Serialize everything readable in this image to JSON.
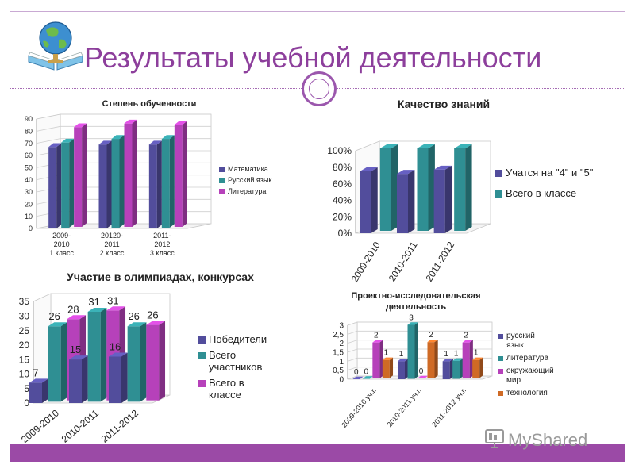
{
  "slide": {
    "title": "Результаты учебной деятельности",
    "watermark": "MyShared"
  },
  "colors": {
    "accent": "#9b4aa6",
    "title": "#8d3f9c",
    "navy": "#524d9c",
    "teal": "#2f8f93",
    "magenta": "#b641ba",
    "orange": "#cf6a25"
  },
  "icons": [
    "globe-book-logo-icon",
    "monitor-logo-icon"
  ],
  "chart_data": [
    {
      "id": "c1",
      "type": "bar",
      "title": "Степень обученности",
      "categories": [
        [
          "2009-",
          "2010",
          "1 класс"
        ],
        [
          "20120-",
          "2011",
          "2 класс"
        ],
        [
          "2011-",
          "2012",
          "3 класс"
        ]
      ],
      "series": [
        {
          "name": "Математика",
          "color": "#524d9c",
          "values": [
            67,
            69,
            69
          ]
        },
        {
          "name": "Русский язык",
          "color": "#2f8f93",
          "values": [
            70,
            73,
            73
          ]
        },
        {
          "name": "Литература",
          "color": "#b641ba",
          "values": [
            82,
            85,
            84
          ]
        }
      ],
      "ylim": [
        0,
        90
      ],
      "yticks": [
        "0",
        "10",
        "20",
        "30",
        "40",
        "50",
        "60",
        "70",
        "80",
        "90"
      ],
      "legend": "right",
      "grid": true
    },
    {
      "id": "c2",
      "type": "bar",
      "title": "Качество знаний",
      "categories": [
        "2009-2010",
        "2010-2011",
        "2011-2012"
      ],
      "series": [
        {
          "name": "Учатся на \"4\" и \"5\"",
          "color": "#524d9c",
          "values": [
            75,
            72,
            77
          ]
        },
        {
          "name": "Всего в классе",
          "color": "#2f8f93",
          "values": [
            100,
            100,
            100
          ]
        }
      ],
      "ylim": [
        0,
        100
      ],
      "yticks": [
        "0%",
        "20%",
        "40%",
        "60%",
        "80%",
        "100%"
      ],
      "legend": "right",
      "grid": false
    },
    {
      "id": "c3",
      "type": "bar",
      "title": "Участие в олимпиадах, конкурсах",
      "categories": [
        "2009-2010",
        "2010-2011",
        "2011-2012"
      ],
      "series": [
        {
          "name": "Победители",
          "color": "#524d9c",
          "values": [
            7,
            15,
            16
          ],
          "labels": [
            "7",
            "15",
            "16"
          ]
        },
        {
          "name": "Всего участников",
          "color": "#2f8f93",
          "values": [
            26,
            31,
            26
          ],
          "labels": [
            "26",
            "31",
            "26"
          ]
        },
        {
          "name": "Всего в классе",
          "color": "#b641ba",
          "values": [
            28,
            31,
            26
          ],
          "labels": [
            "28",
            "31",
            "26"
          ]
        }
      ],
      "ylim": [
        0,
        35
      ],
      "yticks": [
        "0",
        "5",
        "10",
        "15",
        "20",
        "25",
        "30",
        "35"
      ],
      "legend": "right",
      "grid": false
    },
    {
      "id": "c4",
      "type": "bar",
      "title": "Проектно-исследовательская деятельность",
      "categories": [
        "2009-2010 уч.г.",
        "2010-2011 уч.г.",
        "2011-2012 уч.г."
      ],
      "series": [
        {
          "name": "русский язык",
          "color": "#524d9c",
          "values": [
            0,
            1,
            1
          ],
          "labels": [
            "0",
            "1",
            "1"
          ]
        },
        {
          "name": "литература",
          "color": "#2f8f93",
          "values": [
            0,
            3,
            1
          ],
          "labels": [
            "0",
            "3",
            "1"
          ]
        },
        {
          "name": "окружающий мир",
          "color": "#b641ba",
          "values": [
            2,
            0,
            2
          ],
          "labels": [
            "2",
            "0",
            "2"
          ]
        },
        {
          "name": "технология",
          "color": "#cf6a25",
          "values": [
            1,
            2,
            1
          ],
          "labels": [
            "1",
            "2",
            "1"
          ]
        }
      ],
      "ylim": [
        0,
        3
      ],
      "yticks": [
        "0",
        "0,5",
        "1",
        "1,5",
        "2",
        "2,5",
        "3"
      ],
      "legend": "right",
      "grid": true
    }
  ]
}
